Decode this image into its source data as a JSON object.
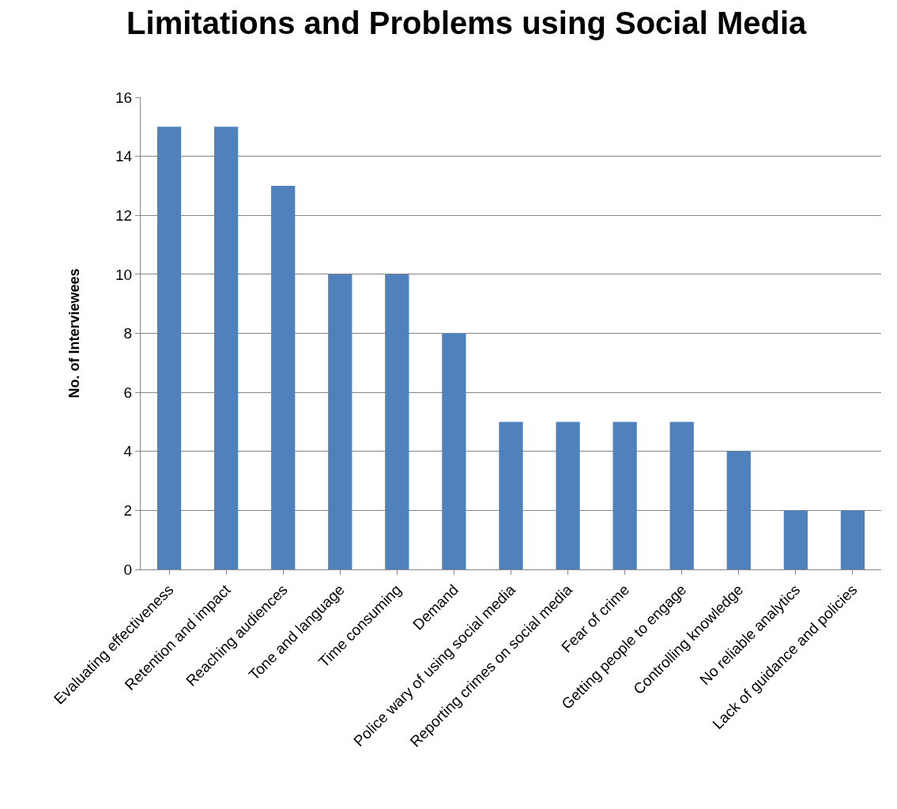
{
  "chart_data": {
    "type": "bar",
    "title": "Limitations and Problems using Social Media",
    "ylabel": "No. of Interviewees",
    "categories": [
      "Evaluating effectiveness",
      "Retention and impact",
      "Reaching audiences",
      "Tone and language",
      "Time consuming",
      "Demand",
      "Police wary of using social media",
      "Reporting crimes on social media",
      "Fear of crime",
      "Getting people to engage",
      "Controlling knowledge",
      "No reliable analytics",
      "Lack of guidance and policies"
    ],
    "values": [
      15,
      15,
      13,
      10,
      10,
      8,
      5,
      5,
      5,
      5,
      4,
      2,
      2
    ],
    "color": "#4f81bd",
    "ylim": [
      0,
      16
    ],
    "yticks": [
      0,
      2,
      4,
      6,
      8,
      10,
      12,
      14,
      16
    ],
    "grid": "y",
    "legend": false
  }
}
